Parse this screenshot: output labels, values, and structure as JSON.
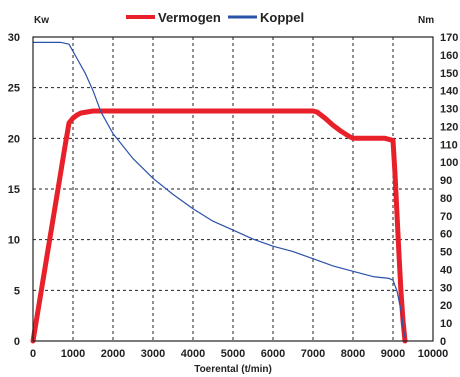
{
  "chart_data": {
    "type": "line",
    "title": "",
    "xlabel": "Toerental (t/min)",
    "y_left_unit": "Kw",
    "y_right_unit": "Nm",
    "xlim": [
      0,
      10000
    ],
    "ylim_left": [
      0,
      30
    ],
    "ylim_right": [
      0,
      170
    ],
    "x_ticks": [
      0,
      1000,
      2000,
      3000,
      4000,
      5000,
      6000,
      7000,
      8000,
      9000,
      10000
    ],
    "y_left_ticks": [
      0,
      5,
      10,
      15,
      20,
      25,
      30
    ],
    "y_right_ticks": [
      0,
      10,
      20,
      30,
      40,
      50,
      60,
      70,
      80,
      90,
      100,
      110,
      120,
      130,
      140,
      150,
      160,
      170
    ],
    "grid": true,
    "grid_style": "dashed",
    "legend_position": "top-center",
    "series": [
      {
        "name": "Vermogen",
        "axis": "left",
        "color": "#e8202a",
        "x": [
          0,
          200,
          400,
          600,
          800,
          900,
          1000,
          1100,
          1200,
          1500,
          2000,
          3000,
          4000,
          5000,
          6000,
          7000,
          7100,
          7300,
          7500,
          7700,
          7900,
          8000,
          8200,
          8500,
          8800,
          9000,
          9050,
          9100,
          9150,
          9200,
          9250,
          9300
        ],
        "y": [
          0,
          4.8,
          9.6,
          14.4,
          19.2,
          21.5,
          22.0,
          22.3,
          22.5,
          22.7,
          22.7,
          22.7,
          22.7,
          22.7,
          22.7,
          22.7,
          22.6,
          22.0,
          21.3,
          20.7,
          20.2,
          20.0,
          20.0,
          20.0,
          20.0,
          19.8,
          16.5,
          12.5,
          8.5,
          4.8,
          2.0,
          0
        ]
      },
      {
        "name": "Koppel",
        "axis": "right",
        "color": "#2a52a8",
        "x": [
          0,
          300,
          700,
          900,
          1000,
          1100,
          1300,
          1500,
          1700,
          2000,
          2500,
          3000,
          3500,
          4000,
          4500,
          5000,
          5500,
          6000,
          6500,
          7000,
          7500,
          8000,
          8500,
          8900,
          9000,
          9100,
          9200,
          9250,
          9300
        ],
        "y": [
          167,
          167,
          167,
          166,
          162,
          158,
          150,
          140,
          128,
          116,
          102,
          91,
          82,
          74,
          67,
          62,
          57,
          53,
          50,
          46,
          42,
          39,
          36,
          35,
          34,
          28,
          17,
          8,
          2
        ]
      }
    ]
  }
}
